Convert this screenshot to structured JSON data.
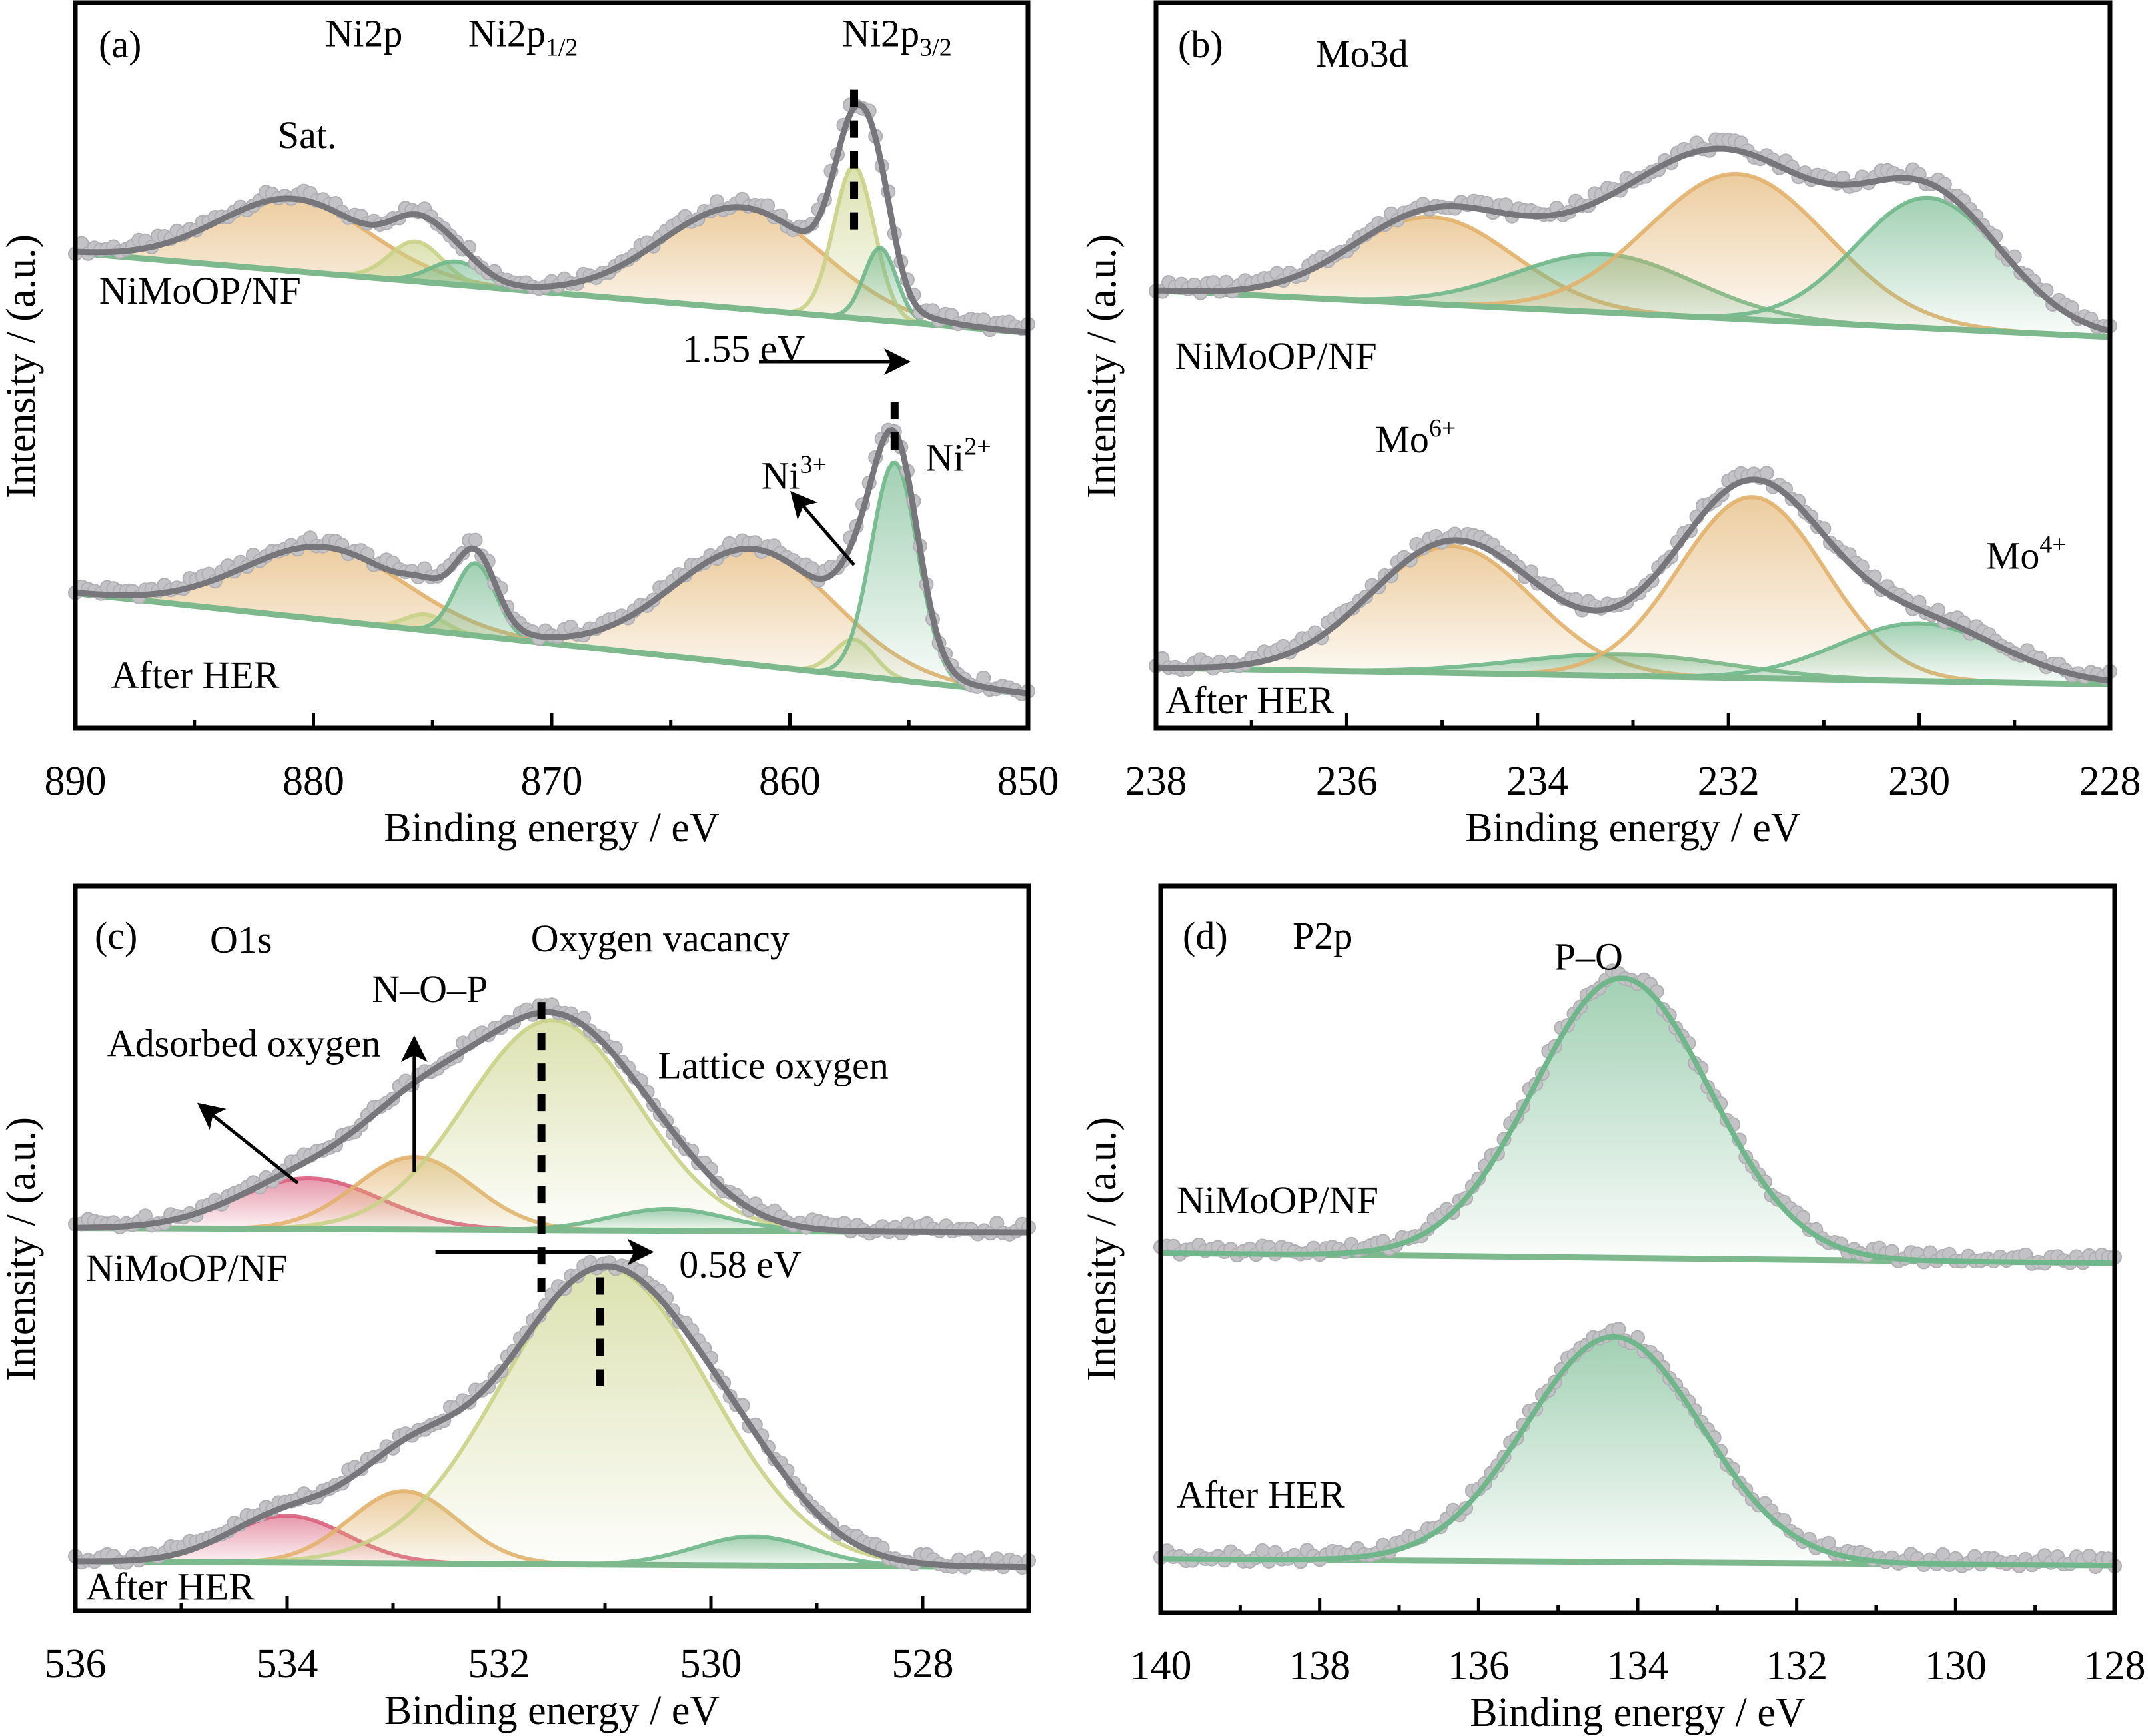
{
  "figure": {
    "colors": {
      "orange": "#e2b16b",
      "yellowgreen": "#c9d286",
      "green": "#6fb78a",
      "pink": "#d9607e",
      "fit": "#76767b",
      "points": "#c3c3c6",
      "baseline": "#7db98c"
    }
  },
  "chart_data": [
    {
      "id": "a",
      "type": "area",
      "panel_label": "(a)",
      "title": "Ni2p",
      "xlabel": "Binding energy / eV",
      "ylabel": "Intensity / (a.u.)",
      "xlim": [
        890,
        850
      ],
      "ylim": [
        0,
        100
      ],
      "xticks": [
        890,
        880,
        870,
        860,
        850
      ],
      "xticks_minor": [
        885,
        875,
        865,
        855
      ],
      "annotations": [
        {
          "text": "Ni2p",
          "x": 879.5,
          "y": 94
        },
        {
          "text": "Ni2p",
          "sub": "1/2",
          "x": 873.5,
          "y": 94
        },
        {
          "text": "Ni2p",
          "sub": "3/2",
          "x": 857.8,
          "y": 94
        },
        {
          "text": "Sat.",
          "x": 881.5,
          "y": 80
        },
        {
          "text": "1.55 eV",
          "x": 864.5,
          "y": 50.5
        },
        {
          "text": "Ni",
          "sup": "3+",
          "x": 861.2,
          "y": 33
        },
        {
          "text": "Ni",
          "sup": "2+",
          "x": 854.3,
          "y": 35.5
        }
      ],
      "series": [
        {
          "name": "NiMoOP/NF",
          "label_pos": [
            889,
            58.5
          ],
          "baseline": [
            65.5,
            54.5
          ],
          "peaks": [
            {
              "center": 880.8,
              "height": 10,
              "fwhm": 7.5,
              "color": "orange"
            },
            {
              "center": 875.7,
              "height": 5.5,
              "fwhm": 2.6,
              "color": "yellowgreen"
            },
            {
              "center": 874.0,
              "height": 3.2,
              "fwhm": 2.6,
              "color": "green"
            },
            {
              "center": 862.0,
              "height": 14,
              "fwhm": 8.0,
              "color": "orange"
            },
            {
              "center": 857.3,
              "height": 21,
              "fwhm": 2.0,
              "color": "yellowgreen"
            },
            {
              "center": 856.2,
              "height": 10,
              "fwhm": 1.6,
              "color": "green"
            }
          ]
        },
        {
          "name": "After HER",
          "label_pos": [
            888.5,
            5.5
          ],
          "baseline": [
            18.6,
            4.7
          ],
          "peaks": [
            {
              "center": 879.5,
              "height": 10,
              "fwhm": 8.0,
              "color": "orange"
            },
            {
              "center": 875.3,
              "height": 2.2,
              "fwhm": 2.0,
              "color": "yellowgreen"
            },
            {
              "center": 873.2,
              "height": 10,
              "fwhm": 2.0,
              "color": "green"
            },
            {
              "center": 861.5,
              "height": 16,
              "fwhm": 8.0,
              "color": "orange"
            },
            {
              "center": 857.3,
              "height": 5,
              "fwhm": 2.0,
              "color": "yellowgreen"
            },
            {
              "center": 855.6,
              "height": 30,
              "fwhm": 2.3,
              "color": "green"
            }
          ]
        }
      ],
      "dashed_markers": [
        {
          "x": 857.3,
          "y": [
            67,
            88
          ]
        },
        {
          "x": 855.6,
          "y": [
            37,
            45
          ]
        }
      ],
      "arrows": [
        {
          "from": [
            861.3,
            50.5
          ],
          "to": [
            855.2,
            50.5
          ]
        },
        {
          "from": [
            857.3,
            22.5
          ],
          "to": [
            859.8,
            32
          ]
        }
      ]
    },
    {
      "id": "b",
      "type": "area",
      "panel_label": "(b)",
      "title": "Mo3d",
      "xlabel": "Binding energy / eV",
      "ylabel": "Intensity / (a.u.)",
      "xlim": [
        238,
        228
      ],
      "ylim": [
        0,
        100
      ],
      "xticks": [
        238,
        236,
        234,
        232,
        230,
        228
      ],
      "xticks_minor": [
        237,
        235,
        233,
        231,
        229
      ],
      "annotations": [
        {
          "text": "Mo",
          "sup": "6+",
          "x": 235.7,
          "y": 38
        },
        {
          "text": "Mo",
          "sup": "4+",
          "x": 229.3,
          "y": 22
        }
      ],
      "series": [
        {
          "name": "NiMoOP/NF",
          "label_pos": [
            237.8,
            49.5
          ],
          "baseline": [
            60.3,
            53.9
          ],
          "peaks": [
            {
              "center": 235.1,
              "height": 12,
              "fwhm": 2.0,
              "color": "orange"
            },
            {
              "center": 233.3,
              "height": 8,
              "fwhm": 2.2,
              "color": "green"
            },
            {
              "center": 231.9,
              "height": 20,
              "fwhm": 2.2,
              "color": "orange"
            },
            {
              "center": 229.9,
              "height": 18,
              "fwhm": 1.8,
              "color": "green"
            }
          ]
        },
        {
          "name": "After HER",
          "label_pos": [
            237.9,
            2
          ],
          "baseline": [
            8.3,
            6.0
          ],
          "peaks": [
            {
              "center": 234.9,
              "height": 17.5,
              "fwhm": 2.0,
              "color": "orange"
            },
            {
              "center": 233.1,
              "height": 3,
              "fwhm": 2.6,
              "color": "green"
            },
            {
              "center": 231.75,
              "height": 25,
              "fwhm": 1.8,
              "color": "orange"
            },
            {
              "center": 230.0,
              "height": 8,
              "fwhm": 2.0,
              "color": "green"
            }
          ]
        }
      ],
      "dashed_markers": [],
      "arrows": []
    },
    {
      "id": "c",
      "type": "area",
      "panel_label": "(c)",
      "title": "O1s",
      "xlabel": "Binding energy / eV",
      "ylabel": "Intensity / (a.u.)",
      "xlim": [
        536,
        527
      ],
      "ylim": [
        0,
        100
      ],
      "xticks": [
        536,
        534,
        532,
        530,
        528
      ],
      "xticks_minor": [
        535,
        533,
        531,
        529
      ],
      "annotations": [
        {
          "text": "Oxygen vacancy",
          "x": 531.7,
          "y": 91
        },
        {
          "text": "N–O–P",
          "x": 533.2,
          "y": 84
        },
        {
          "text": "Adsorbed oxygen",
          "x": 535.7,
          "y": 76.5
        },
        {
          "text": "Lattice oxygen",
          "x": 530.5,
          "y": 73.5
        },
        {
          "text": "0.58 eV",
          "x": 530.3,
          "y": 46
        }
      ],
      "series": [
        {
          "name": "NiMoOP/NF",
          "label_pos": [
            535.9,
            45.5
          ],
          "baseline": [
            52.8,
            52.2
          ],
          "peaks": [
            {
              "center": 533.8,
              "height": 7,
              "fwhm": 1.6,
              "color": "pink"
            },
            {
              "center": 532.8,
              "height": 10,
              "fwhm": 1.3,
              "color": "orange"
            },
            {
              "center": 531.5,
              "height": 29,
              "fwhm": 1.9,
              "color": "yellowgreen"
            },
            {
              "center": 530.4,
              "height": 3,
              "fwhm": 1.3,
              "color": "green"
            }
          ]
        },
        {
          "name": "After HER",
          "label_pos": [
            535.9,
            1.5
          ],
          "baseline": [
            6.8,
            6.0
          ],
          "peaks": [
            {
              "center": 534.0,
              "height": 6.5,
              "fwhm": 1.3,
              "color": "pink"
            },
            {
              "center": 532.9,
              "height": 10,
              "fwhm": 1.2,
              "color": "orange"
            },
            {
              "center": 531.0,
              "height": 41,
              "fwhm": 2.3,
              "color": "yellowgreen"
            },
            {
              "center": 529.6,
              "height": 4,
              "fwhm": 1.3,
              "color": "green"
            }
          ]
        }
      ],
      "dashed_markers": [
        {
          "x": 531.6,
          "y": [
            44,
            84
          ]
        },
        {
          "x": 531.05,
          "y": [
            31,
            46
          ]
        }
      ],
      "arrows": [
        {
          "from": [
            532.6,
            49.5
          ],
          "to": [
            530.6,
            49.5
          ]
        },
        {
          "from": [
            532.8,
            60.5
          ],
          "to": [
            532.8,
            78.5
          ]
        },
        {
          "from": [
            533.9,
            59
          ],
          "to": [
            534.8,
            69.5
          ]
        }
      ]
    },
    {
      "id": "d",
      "type": "area",
      "panel_label": "(d)",
      "title": "P2p",
      "xlabel": "Binding energy / eV",
      "ylabel": "Intensity / (a.u.)",
      "xlim": [
        140,
        128
      ],
      "ylim": [
        0,
        100
      ],
      "xticks": [
        140,
        138,
        136,
        134,
        132,
        130,
        128
      ],
      "xticks_minor": [
        139,
        137,
        135,
        133,
        131,
        129
      ],
      "annotations": [
        {
          "text": "P–O",
          "x": 135.05,
          "y": 88.5
        }
      ],
      "series": [
        {
          "name": "NiMoOP/NF",
          "label_pos": [
            139.8,
            55
          ],
          "baseline": [
            49.5,
            48.1
          ],
          "peaks": [
            {
              "center": 134.2,
              "height": 38.5,
              "fwhm": 2.6,
              "color": "green"
            }
          ]
        },
        {
          "name": "After HER",
          "label_pos": [
            139.8,
            14.5
          ],
          "baseline": [
            7.4,
            6.5
          ],
          "peaks": [
            {
              "center": 134.3,
              "height": 31,
              "fwhm": 2.6,
              "color": "green"
            }
          ]
        }
      ],
      "dashed_markers": [],
      "arrows": []
    }
  ]
}
